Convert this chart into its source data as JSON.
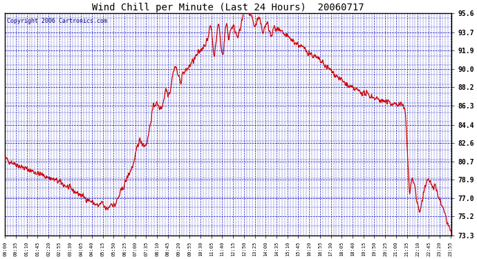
{
  "title": "Wind Chill per Minute (Last 24 Hours)  20060717",
  "copyright": "Copyright 2006 Cartronics.com",
  "ylabel_values": [
    73.3,
    75.2,
    77.0,
    78.9,
    80.7,
    82.6,
    84.4,
    86.3,
    88.2,
    90.0,
    91.9,
    93.7,
    95.6
  ],
  "ymin": 73.3,
  "ymax": 95.6,
  "line_color": "#cc0000",
  "bg_color": "#ffffff",
  "plot_bg_color": "#ffffff",
  "grid_color": "#0000bb",
  "title_color": "#000000",
  "border_color": "#000000",
  "title_fontsize": 10,
  "copyright_fontsize": 6,
  "ytick_fontsize": 7,
  "xtick_fontsize": 5,
  "x_tick_interval_minutes": 35,
  "figwidth": 6.9,
  "figheight": 3.75,
  "dpi": 100
}
